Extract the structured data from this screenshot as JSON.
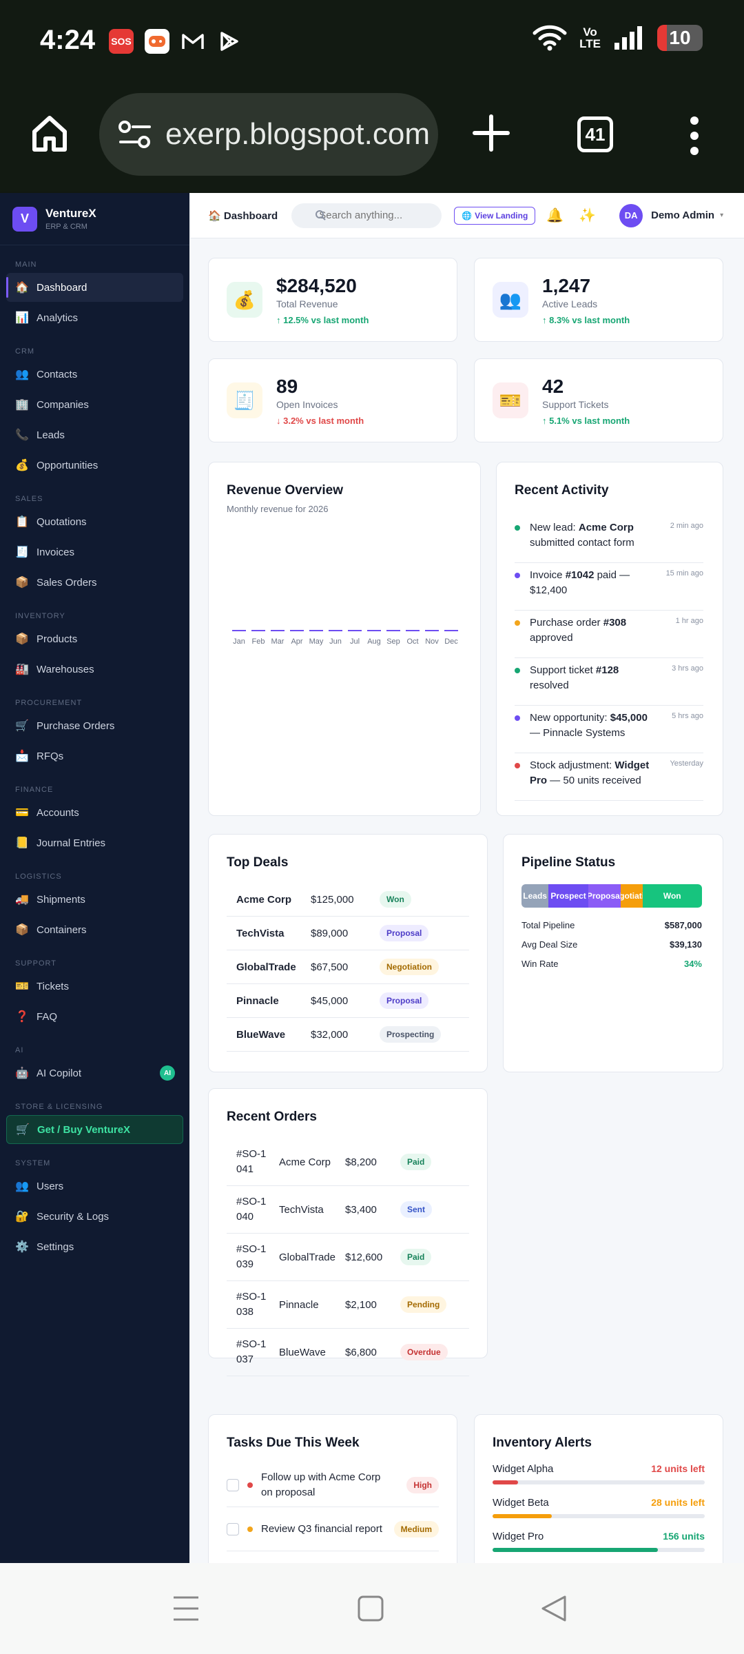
{
  "status_bar": {
    "time": "4:24",
    "apps": [
      {
        "icon": "sos-app-icon",
        "label": "SOS",
        "color": "#e53935"
      },
      {
        "icon": "game-app-icon",
        "label": "",
        "color": "#ffffff"
      },
      {
        "icon": "gmail-icon",
        "label": "",
        "color": "#121a12"
      },
      {
        "icon": "play-store-icon",
        "label": "",
        "color": "#121a12"
      }
    ],
    "volte_line1": "Vo",
    "volte_line2": "LTE",
    "battery_level": "10"
  },
  "browser": {
    "url": "exerp.blogspot.com",
    "tab_count": "41"
  },
  "sidebar": {
    "brand_logo": "V",
    "brand_name": "VentureX",
    "brand_sub": "ERP & CRM",
    "sections": [
      {
        "label": "MAIN",
        "items": [
          {
            "label": "Dashboard",
            "icon": "🏠",
            "active": true
          },
          {
            "label": "Analytics",
            "icon": "📊"
          }
        ]
      },
      {
        "label": "CRM",
        "items": [
          {
            "label": "Contacts",
            "icon": "👥"
          },
          {
            "label": "Companies",
            "icon": "🏢"
          },
          {
            "label": "Leads",
            "icon": "📞"
          },
          {
            "label": "Opportunities",
            "icon": "💰"
          }
        ]
      },
      {
        "label": "SALES",
        "items": [
          {
            "label": "Quotations",
            "icon": "📋"
          },
          {
            "label": "Invoices",
            "icon": "🧾"
          },
          {
            "label": "Sales Orders",
            "icon": "📦"
          }
        ]
      },
      {
        "label": "INVENTORY",
        "items": [
          {
            "label": "Products",
            "icon": "📦"
          },
          {
            "label": "Warehouses",
            "icon": "🏭"
          }
        ]
      },
      {
        "label": "PROCUREMENT",
        "items": [
          {
            "label": "Purchase Orders",
            "icon": "🛒"
          },
          {
            "label": "RFQs",
            "icon": "📩"
          }
        ]
      },
      {
        "label": "FINANCE",
        "items": [
          {
            "label": "Accounts",
            "icon": "💳"
          },
          {
            "label": "Journal Entries",
            "icon": "📒"
          }
        ]
      },
      {
        "label": "LOGISTICS",
        "items": [
          {
            "label": "Shipments",
            "icon": "🚚"
          },
          {
            "label": "Containers",
            "icon": "📦"
          }
        ]
      },
      {
        "label": "SUPPORT",
        "items": [
          {
            "label": "Tickets",
            "icon": "🎫"
          },
          {
            "label": "FAQ",
            "icon": "❓"
          }
        ]
      },
      {
        "label": "AI",
        "items": [
          {
            "label": "AI Copilot",
            "icon": "🤖",
            "badge": "AI"
          }
        ]
      },
      {
        "label": "STORE & LICENSING",
        "items": [
          {
            "label": "Get / Buy VentureX",
            "icon": "🛒",
            "cta": true
          }
        ]
      },
      {
        "label": "SYSTEM",
        "items": [
          {
            "label": "Users",
            "icon": "👥"
          },
          {
            "label": "Security & Logs",
            "icon": "🔐"
          },
          {
            "label": "Settings",
            "icon": "⚙️"
          }
        ]
      }
    ]
  },
  "topbar": {
    "breadcrumb_icon": "🏠",
    "breadcrumb": "Dashboard",
    "search_placeholder": "Search anything...",
    "view_landing": "View Landing",
    "avatar": "DA",
    "user": "Demo Admin"
  },
  "stats": [
    {
      "icon": "💰",
      "icon_bg": "#e8f8ef",
      "value": "$284,520",
      "label": "Total Revenue",
      "trend": "↑ 12.5% vs last month",
      "dir": "up"
    },
    {
      "icon": "👥",
      "icon_bg": "#eef0ff",
      "value": "1,247",
      "label": "Active Leads",
      "trend": "↑ 8.3% vs last month",
      "dir": "up"
    },
    {
      "icon": "🧾",
      "icon_bg": "#fff8e6",
      "value": "89",
      "label": "Open Invoices",
      "trend": "↓ 3.2% vs last month",
      "dir": "down"
    },
    {
      "icon": "🎫",
      "icon_bg": "#fdeef0",
      "value": "42",
      "label": "Support Tickets",
      "trend": "↑ 5.1% vs last month",
      "dir": "up"
    }
  ],
  "revenue": {
    "title": "Revenue Overview",
    "subtitle": "Monthly revenue for 2026"
  },
  "chart_data": {
    "type": "bar",
    "categories": [
      "Jan",
      "Feb",
      "Mar",
      "Apr",
      "May",
      "Jun",
      "Jul",
      "Aug",
      "Sep",
      "Oct",
      "Nov",
      "Dec"
    ],
    "values": [
      0,
      0,
      0,
      0,
      0,
      0,
      0,
      0,
      0,
      0,
      0,
      0
    ],
    "title": "Revenue Overview",
    "subtitle": "Monthly revenue for 2026",
    "bar_color": "#6d4df2"
  },
  "activity": {
    "title": "Recent Activity",
    "items": [
      {
        "color": "#17a673",
        "pre": "New lead: ",
        "bold": "Acme Corp",
        "post": " submitted contact form",
        "time": "2 min ago"
      },
      {
        "color": "#6d4df2",
        "pre": "Invoice ",
        "bold": "#1042",
        "post": " paid — $12,400",
        "time": "15 min ago"
      },
      {
        "color": "#f2a51c",
        "pre": "Purchase order ",
        "bold": "#308",
        "post": " approved",
        "time": "1 hr ago"
      },
      {
        "color": "#17a673",
        "pre": "Support ticket ",
        "bold": "#128",
        "post": " resolved",
        "time": "3 hrs ago"
      },
      {
        "color": "#6d4df2",
        "pre": "New opportunity: ",
        "bold": "$45,000",
        "post": " — Pinnacle Systems",
        "time": "5 hrs ago"
      },
      {
        "color": "#e04848",
        "pre": "Stock adjustment: ",
        "bold": "Widget Pro",
        "post": " — 50 units received",
        "time": "Yesterday"
      }
    ]
  },
  "deals": {
    "title": "Top Deals",
    "rows": [
      {
        "company": "Acme Corp",
        "amount": "$125,000",
        "stage": "Won",
        "cls": "p-won"
      },
      {
        "company": "TechVista",
        "amount": "$89,000",
        "stage": "Proposal",
        "cls": "p-proposal"
      },
      {
        "company": "GlobalTrade",
        "amount": "$67,500",
        "stage": "Negotiation",
        "cls": "p-negotiation"
      },
      {
        "company": "Pinnacle",
        "amount": "$45,000",
        "stage": "Proposal",
        "cls": "p-proposal"
      },
      {
        "company": "BlueWave",
        "amount": "$32,000",
        "stage": "Prospecting",
        "cls": "p-prospecting"
      }
    ]
  },
  "pipeline": {
    "title": "Pipeline Status",
    "segments": [
      {
        "label": "Leads",
        "color": "#94a3b8",
        "share": 0.15
      },
      {
        "label": "Prospect",
        "color": "#6d4df2",
        "share": 0.22
      },
      {
        "label": "Proposal",
        "color": "#8b5cf6",
        "share": 0.18
      },
      {
        "label": "Negotiation",
        "color": "#f59e0b",
        "share": 0.12
      },
      {
        "label": "Won",
        "color": "#17c47e",
        "share": 0.33
      }
    ],
    "rows": [
      {
        "label": "Total Pipeline",
        "value": "$587,000"
      },
      {
        "label": "Avg Deal Size",
        "value": "$39,130"
      },
      {
        "label": "Win Rate",
        "value": "34%",
        "green": true
      }
    ]
  },
  "orders": {
    "title": "Recent Orders",
    "rows": [
      {
        "id": "#SO-1041",
        "customer": "Acme Corp",
        "amount": "$8,200",
        "status": "Paid",
        "cls": "p-paid"
      },
      {
        "id": "#SO-1040",
        "customer": "TechVista",
        "amount": "$3,400",
        "status": "Sent",
        "cls": "p-sent"
      },
      {
        "id": "#SO-1039",
        "customer": "GlobalTrade",
        "amount": "$12,600",
        "status": "Paid",
        "cls": "p-paid"
      },
      {
        "id": "#SO-1038",
        "customer": "Pinnacle",
        "amount": "$2,100",
        "status": "Pending",
        "cls": "p-pending"
      },
      {
        "id": "#SO-1037",
        "customer": "BlueWave",
        "amount": "$6,800",
        "status": "Overdue",
        "cls": "p-overdue"
      }
    ]
  },
  "tasks": {
    "title": "Tasks Due This Week",
    "rows": [
      {
        "text": "Follow up with Acme Corp on proposal",
        "priority": "High",
        "cls": "p-high",
        "color": "#e04848"
      },
      {
        "text": "Review Q3 financial report",
        "priority": "Medium",
        "cls": "p-medium",
        "color": "#f2a51c"
      }
    ]
  },
  "inventory": {
    "title": "Inventory Alerts",
    "rows": [
      {
        "name": "Widget Alpha",
        "count": "12 units left",
        "color": "#e04848",
        "level": 0.12
      },
      {
        "name": "Widget Beta",
        "count": "28 units left",
        "color": "#f59e0b",
        "level": 0.28
      },
      {
        "name": "Widget Pro",
        "count": "156 units",
        "color": "#17a673",
        "level": 0.78
      }
    ]
  }
}
